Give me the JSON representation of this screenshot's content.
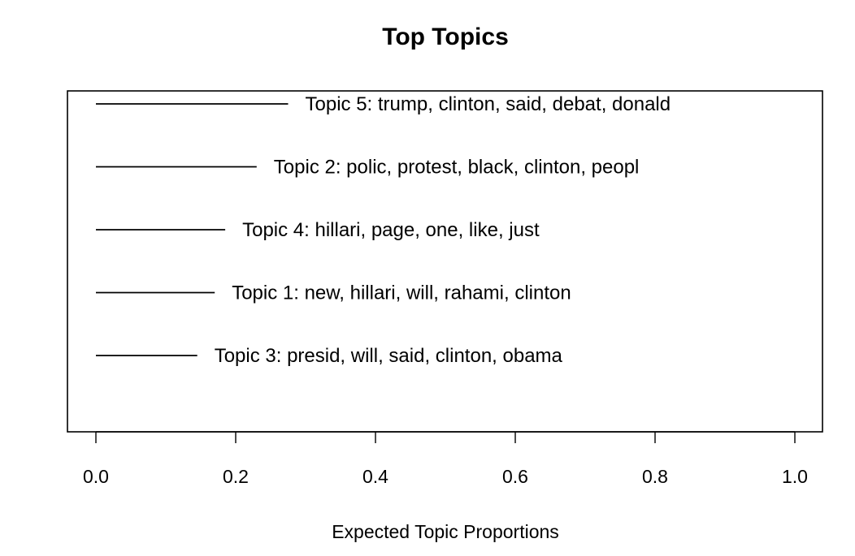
{
  "chart_data": {
    "type": "bar",
    "orientation": "horizontal",
    "title": "Top Topics",
    "xlabel": "Expected Topic Proportions",
    "ylabel": "",
    "xlim": [
      0,
      1
    ],
    "x_ticks": [
      "0.0",
      "0.2",
      "0.4",
      "0.6",
      "0.8",
      "1.0"
    ],
    "grid": false,
    "colors": {
      "line": "#000000",
      "background": "#ffffff"
    },
    "series": [
      {
        "label": "Topic 5: trump, clinton, said, debat, donald",
        "value": 0.275
      },
      {
        "label": "Topic 2: polic, protest, black, clinton, peopl",
        "value": 0.23
      },
      {
        "label": "Topic 4: hillari, page, one, like, just",
        "value": 0.185
      },
      {
        "label": "Topic 1: new, hillari, will, rahami, clinton",
        "value": 0.17
      },
      {
        "label": "Topic 3: presid, will, said, clinton, obama",
        "value": 0.145
      }
    ]
  }
}
